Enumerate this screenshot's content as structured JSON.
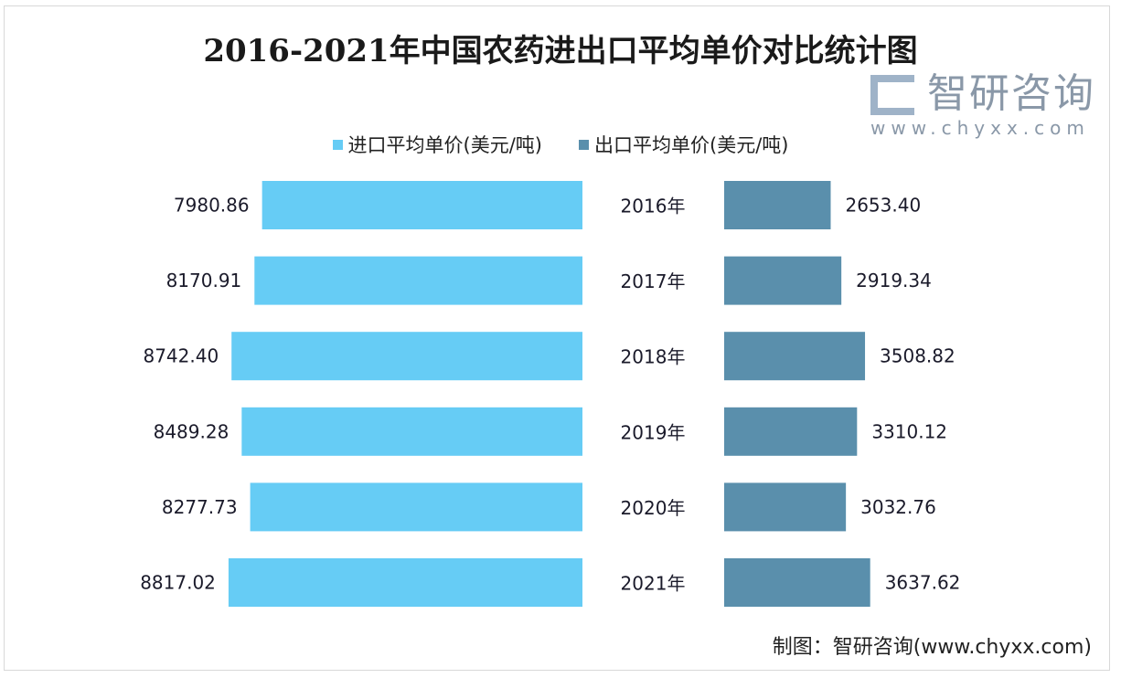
{
  "chart_data": {
    "type": "bar",
    "orientation": "horizontal-butterfly",
    "title": "2016-2021年中国农药进出口平均单价对比统计图",
    "categories": [
      "2016年",
      "2017年",
      "2018年",
      "2019年",
      "2020年",
      "2021年"
    ],
    "series": [
      {
        "name": "进口平均单价(美元/吨)",
        "values": [
          7980.86,
          8170.91,
          8742.4,
          8489.28,
          8277.73,
          8817.02
        ],
        "labels": [
          "7980.86",
          "8170.91",
          "8742.40",
          "8489.28",
          "8277.73",
          "8817.02"
        ],
        "color": "#66ccf5"
      },
      {
        "name": "出口平均单价(美元/吨)",
        "values": [
          2653.4,
          2919.34,
          3508.82,
          3310.12,
          3032.76,
          3637.62
        ],
        "labels": [
          "2653.40",
          "2919.34",
          "3508.82",
          "3310.12",
          "3032.76",
          "3637.62"
        ],
        "color": "#5a8fac"
      }
    ],
    "legend_position": "top",
    "grid": false
  },
  "footer": "制图：智研咨询(www.chyxx.com)",
  "watermark": {
    "name": "智研咨询",
    "url": "www.chyxx.com"
  }
}
